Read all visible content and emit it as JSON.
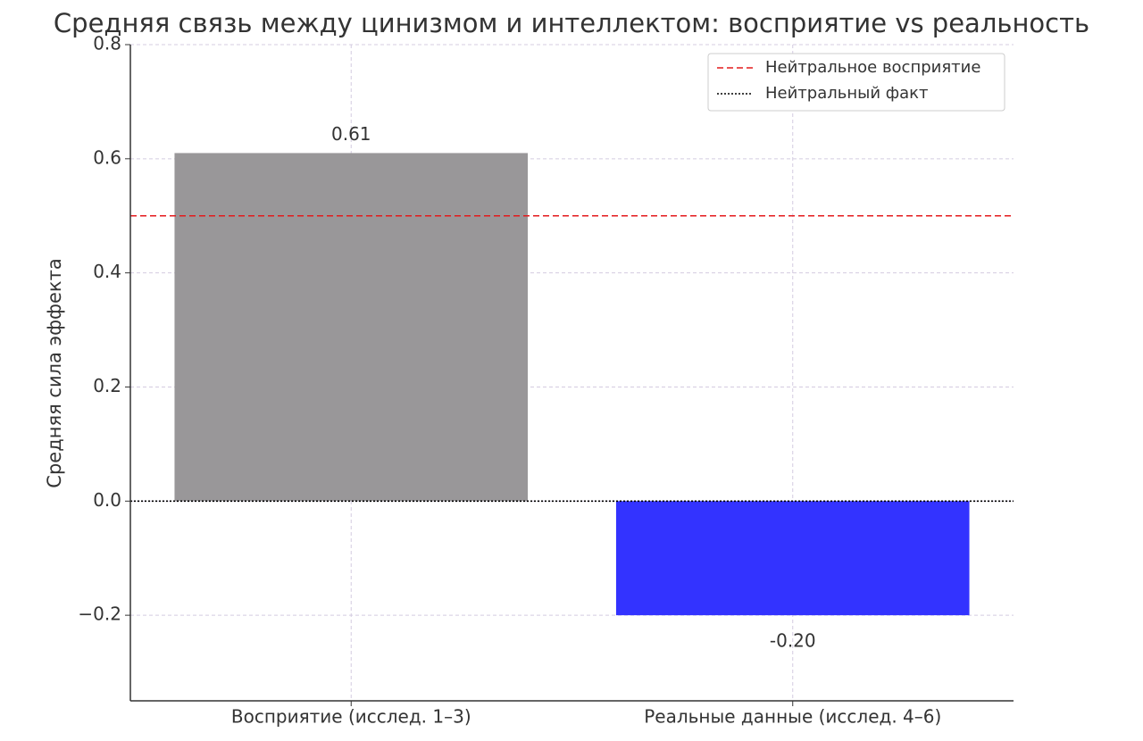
{
  "chart_data": {
    "type": "bar",
    "title": "Средняя связь между цинизмом и интеллектом: восприятие vs реальность",
    "y_label": "Средняя сила эффекта",
    "categories": [
      "Восприятие (исслед. 1–3)",
      "Реальные данные (исслед. 4–6)"
    ],
    "values": [
      0.61,
      -0.2
    ],
    "value_labels": [
      "0.61",
      "-0.20"
    ],
    "colors": [
      "#999799",
      "#3333ff"
    ],
    "ylim": [
      -0.35,
      0.8
    ],
    "yticks": [
      {
        "value": -0.2,
        "label": "−0.2"
      },
      {
        "value": 0,
        "label": "0.0"
      },
      0.2,
      0.4,
      0.6,
      0.8
    ],
    "grid": true,
    "reference_lines": [
      {
        "name": "Нейтральное восприятие",
        "value": 0.5,
        "color": "#e41a1c",
        "style": "dashed"
      },
      {
        "name": "Нейтральный факт",
        "value": 0,
        "color": "#000000",
        "style": "dotted"
      }
    ],
    "legend": "upper right"
  }
}
